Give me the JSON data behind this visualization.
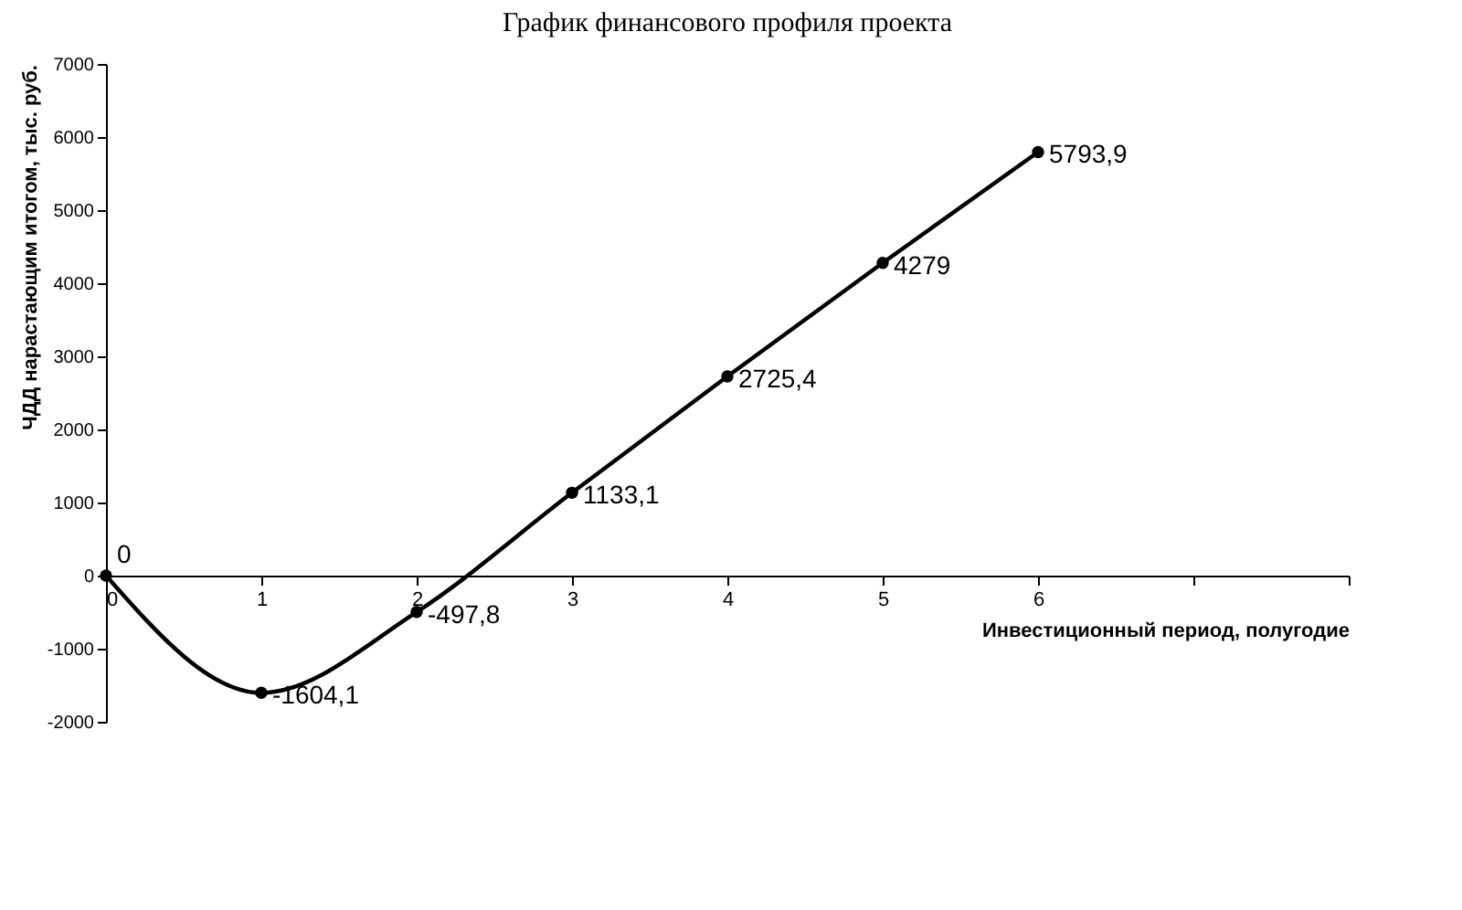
{
  "chart_data": {
    "type": "line",
    "title": "График финансового профиля проекта",
    "xlabel": "Инвестиционный период, полугодие",
    "ylabel": "ЧДД нарастающим итогом, тыс. руб.",
    "x": [
      0,
      1,
      2,
      3,
      4,
      5,
      6
    ],
    "series": [
      {
        "color": "#000000",
        "values": [
          0,
          -1604.1,
          -497.8,
          1133.1,
          2725.4,
          4279,
          5793.9
        ],
        "value_labels": [
          "0",
          "-1604,1",
          "-497,8",
          "1133,1",
          "2725,4",
          "4279",
          "5793,9"
        ]
      }
    ],
    "xlim": [
      0,
      8
    ],
    "xticks": [
      0,
      1,
      2,
      3,
      4,
      5,
      6,
      {
        "value": 7,
        "label": null
      },
      {
        "value": 8,
        "label": null
      }
    ],
    "ylim": [
      -2000,
      7000
    ],
    "yticks": [
      -2000,
      -1000,
      0,
      1000,
      2000,
      3000,
      4000,
      5000,
      6000,
      7000
    ],
    "marker": "circle",
    "grid": false
  }
}
